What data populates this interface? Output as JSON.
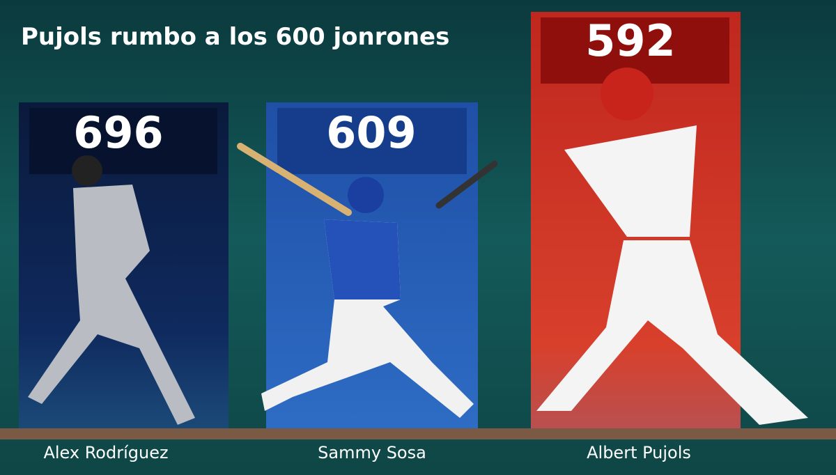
{
  "header": {
    "title": "Pujols rumbo a los 600 jonrones"
  },
  "players": [
    {
      "name": "Alex Rodríguez",
      "home_runs": 696
    },
    {
      "name": "Sammy Sosa",
      "home_runs": 609
    },
    {
      "name": "Albert Pujols",
      "home_runs": 592
    }
  ]
}
